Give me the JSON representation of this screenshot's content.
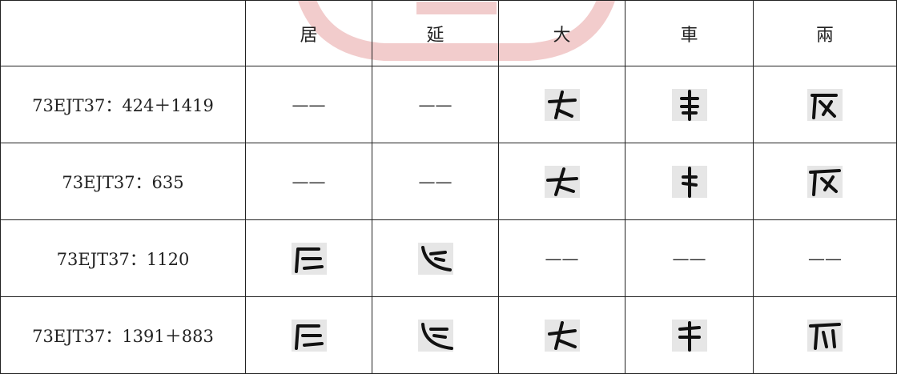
{
  "table": {
    "header": [
      "居",
      "延",
      "大",
      "車",
      "兩"
    ],
    "rows": [
      {
        "label": "73EJT37：424＋1419",
        "dashes": [
          "——",
          "——"
        ]
      },
      {
        "label": "73EJT37：635",
        "dashes": [
          "——",
          "——"
        ]
      },
      {
        "label": "73EJT37：1120",
        "dashes": [
          "——",
          "——",
          "——"
        ]
      },
      {
        "label": "73EJT37：1391＋883"
      }
    ]
  }
}
